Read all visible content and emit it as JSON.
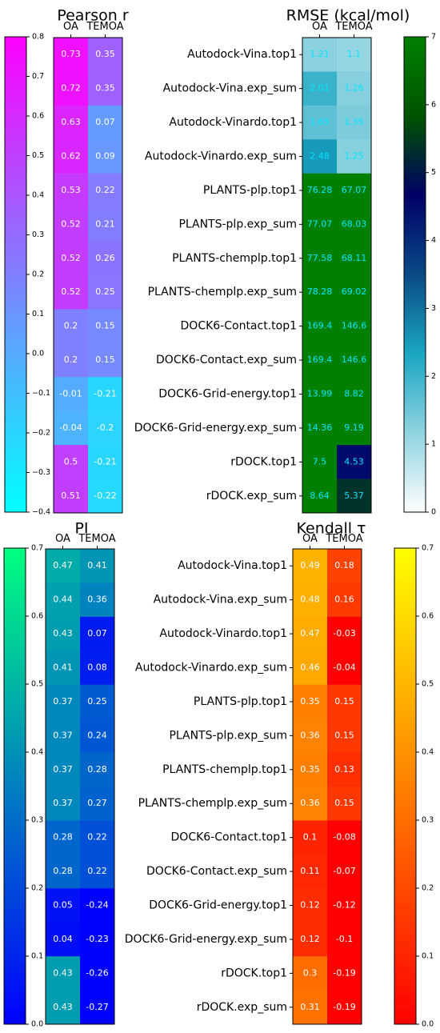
{
  "chart_data": [
    {
      "type": "heatmap",
      "title": "Pearson r",
      "columns": [
        "OA",
        "TEMOA"
      ],
      "values": [
        [
          0.73,
          0.35
        ],
        [
          0.72,
          0.35
        ],
        [
          0.63,
          0.07
        ],
        [
          0.62,
          0.09
        ],
        [
          0.53,
          0.22
        ],
        [
          0.52,
          0.21
        ],
        [
          0.52,
          0.26
        ],
        [
          0.52,
          0.25
        ],
        [
          0.2,
          0.15
        ],
        [
          0.2,
          0.15
        ],
        [
          -0.01,
          -0.21
        ],
        [
          -0.04,
          -0.2
        ],
        [
          0.5,
          -0.21
        ],
        [
          0.51,
          -0.22
        ]
      ],
      "labels": [
        [
          "0.73",
          "0.35"
        ],
        [
          "0.72",
          "0.35"
        ],
        [
          "0.63",
          "0.07"
        ],
        [
          "0.62",
          "0.09"
        ],
        [
          "0.53",
          "0.22"
        ],
        [
          "0.52",
          "0.21"
        ],
        [
          "0.52",
          "0.26"
        ],
        [
          "0.52",
          "0.25"
        ],
        [
          "0.2",
          "0.15"
        ],
        [
          "0.2",
          "0.15"
        ],
        [
          "-0.01",
          "-0.21"
        ],
        [
          "-0.04",
          "-0.2"
        ],
        [
          "0.5",
          "-0.21"
        ],
        [
          "0.51",
          "-0.22"
        ]
      ],
      "colorbar": {
        "range": [
          -0.4,
          0.8
        ],
        "ticks": [
          "0.8",
          "0.7",
          "0.6",
          "0.5",
          "0.4",
          "0.3",
          "0.2",
          "0.1",
          "0.0",
          "−0.1",
          "−0.2",
          "−0.3",
          "−0.4"
        ],
        "tick_values": [
          0.8,
          0.7,
          0.6,
          0.5,
          0.4,
          0.3,
          0.2,
          0.1,
          0.0,
          -0.1,
          -0.2,
          -0.3,
          -0.4
        ],
        "colors": [
          "#00ffff",
          "#ff00ff"
        ],
        "colormap": "cool"
      }
    },
    {
      "type": "heatmap",
      "title": "RMSE (kcal/mol)",
      "columns": [
        "OA",
        "TEMOA"
      ],
      "rows": [
        "Autodock-Vina.top1",
        "Autodock-Vina.exp_sum",
        "Autodock-Vinardo.top1",
        "Autodock-Vinardo.exp_sum",
        "PLANTS-plp.top1",
        "PLANTS-plp.exp_sum",
        "PLANTS-chemplp.top1",
        "PLANTS-chemplp.exp_sum",
        "DOCK6-Contact.top1",
        "DOCK6-Contact.exp_sum",
        "DOCK6-Grid-energy.top1",
        "DOCK6-Grid-energy.exp_sum",
        "rDOCK.top1",
        "rDOCK.exp_sum"
      ],
      "values": [
        [
          1.21,
          1.1
        ],
        [
          2.01,
          1.26
        ],
        [
          1.65,
          1.35
        ],
        [
          2.48,
          1.25
        ],
        [
          76.28,
          67.07
        ],
        [
          77.07,
          68.03
        ],
        [
          77.58,
          68.11
        ],
        [
          78.28,
          69.02
        ],
        [
          169.4,
          146.6
        ],
        [
          169.4,
          146.6
        ],
        [
          13.99,
          8.82
        ],
        [
          14.36,
          9.19
        ],
        [
          7.5,
          4.53
        ],
        [
          8.64,
          5.37
        ]
      ],
      "labels": [
        [
          "1.21",
          "1.1"
        ],
        [
          "2.01",
          "1.26"
        ],
        [
          "1.65",
          "1.35"
        ],
        [
          "2.48",
          "1.25"
        ],
        [
          "76.28",
          "67.07"
        ],
        [
          "77.07",
          "68.03"
        ],
        [
          "77.58",
          "68.11"
        ],
        [
          "78.28",
          "69.02"
        ],
        [
          "169.4",
          "146.6"
        ],
        [
          "169.4",
          "146.6"
        ],
        [
          "13.99",
          "8.82"
        ],
        [
          "14.36",
          "9.19"
        ],
        [
          "7.5",
          "4.53"
        ],
        [
          "8.64",
          "5.37"
        ]
      ],
      "colorbar": {
        "range": [
          0,
          7
        ],
        "ticks": [
          "7",
          "6",
          "5",
          "4",
          "3",
          "2",
          "1",
          "0"
        ],
        "tick_values": [
          7,
          6,
          5,
          4,
          3,
          2,
          1,
          0
        ],
        "colors": [
          "#ffffff",
          "#8fd3e0",
          "#1aa6c2",
          "#0a4a86",
          "#000066",
          "#005400",
          "#008000"
        ],
        "colormap": "ocean_r"
      }
    },
    {
      "type": "heatmap",
      "title": "PI",
      "columns": [
        "OA",
        "TEMOA"
      ],
      "values": [
        [
          0.47,
          0.41
        ],
        [
          0.44,
          0.36
        ],
        [
          0.43,
          0.07
        ],
        [
          0.41,
          0.08
        ],
        [
          0.37,
          0.25
        ],
        [
          0.37,
          0.24
        ],
        [
          0.37,
          0.28
        ],
        [
          0.37,
          0.27
        ],
        [
          0.28,
          0.22
        ],
        [
          0.28,
          0.22
        ],
        [
          0.05,
          -0.24
        ],
        [
          0.04,
          -0.23
        ],
        [
          0.43,
          -0.26
        ],
        [
          0.43,
          -0.27
        ]
      ],
      "labels": [
        [
          "0.47",
          "0.41"
        ],
        [
          "0.44",
          "0.36"
        ],
        [
          "0.43",
          "0.07"
        ],
        [
          "0.41",
          "0.08"
        ],
        [
          "0.37",
          "0.25"
        ],
        [
          "0.37",
          "0.24"
        ],
        [
          "0.37",
          "0.28"
        ],
        [
          "0.37",
          "0.27"
        ],
        [
          "0.28",
          "0.22"
        ],
        [
          "0.28",
          "0.22"
        ],
        [
          "0.05",
          "-0.24"
        ],
        [
          "0.04",
          "-0.23"
        ],
        [
          "0.43",
          "-0.26"
        ],
        [
          "0.43",
          "-0.27"
        ]
      ],
      "colorbar": {
        "range": [
          0,
          0.7
        ],
        "ticks": [
          "0.7",
          "0.6",
          "0.5",
          "0.4",
          "0.3",
          "0.2",
          "0.1",
          "0.0"
        ],
        "tick_values": [
          0.7,
          0.6,
          0.5,
          0.4,
          0.3,
          0.2,
          0.1,
          0.0
        ],
        "colors": [
          "#0000ff",
          "#00ff80"
        ],
        "colormap": "winter"
      }
    },
    {
      "type": "heatmap",
      "title": "Kendall τ",
      "columns": [
        "OA",
        "TEMOA"
      ],
      "rows": [
        "Autodock-Vina.top1",
        "Autodock-Vina.exp_sum",
        "Autodock-Vinardo.top1",
        "Autodock-Vinardo.exp_sum",
        "PLANTS-plp.top1",
        "PLANTS-plp.exp_sum",
        "PLANTS-chemplp.top1",
        "PLANTS-chemplp.exp_sum",
        "DOCK6-Contact.top1",
        "DOCK6-Contact.exp_sum",
        "DOCK6-Grid-energy.top1",
        "DOCK6-Grid-energy.exp_sum",
        "rDOCK.top1",
        "rDOCK.exp_sum"
      ],
      "values": [
        [
          0.49,
          0.18
        ],
        [
          0.48,
          0.16
        ],
        [
          0.47,
          -0.03
        ],
        [
          0.46,
          -0.04
        ],
        [
          0.35,
          0.15
        ],
        [
          0.36,
          0.15
        ],
        [
          0.35,
          0.13
        ],
        [
          0.36,
          0.15
        ],
        [
          0.1,
          -0.08
        ],
        [
          0.11,
          -0.07
        ],
        [
          0.12,
          -0.12
        ],
        [
          0.12,
          -0.1
        ],
        [
          0.3,
          -0.19
        ],
        [
          0.31,
          -0.19
        ]
      ],
      "labels": [
        [
          "0.49",
          "0.18"
        ],
        [
          "0.48",
          "0.16"
        ],
        [
          "0.47",
          "-0.03"
        ],
        [
          "0.46",
          "-0.04"
        ],
        [
          "0.35",
          "0.15"
        ],
        [
          "0.36",
          "0.15"
        ],
        [
          "0.35",
          "0.13"
        ],
        [
          "0.36",
          "0.15"
        ],
        [
          "0.1",
          "-0.08"
        ],
        [
          "0.11",
          "-0.07"
        ],
        [
          "0.12",
          "-0.12"
        ],
        [
          "0.12",
          "-0.1"
        ],
        [
          "0.3",
          "-0.19"
        ],
        [
          "0.31",
          "-0.19"
        ]
      ],
      "colorbar": {
        "range": [
          0,
          0.7
        ],
        "ticks": [
          "0.7",
          "0.6",
          "0.5",
          "0.4",
          "0.3",
          "0.2",
          "0.1",
          "0.0"
        ],
        "tick_values": [
          0.7,
          0.6,
          0.5,
          0.4,
          0.3,
          0.2,
          0.1,
          0.0
        ],
        "colors": [
          "#ff0000",
          "#ffff00"
        ],
        "colormap": "autumn"
      }
    }
  ],
  "colors": {
    "label_cyan": "#00e5ff",
    "label_white": "#ffffff"
  }
}
